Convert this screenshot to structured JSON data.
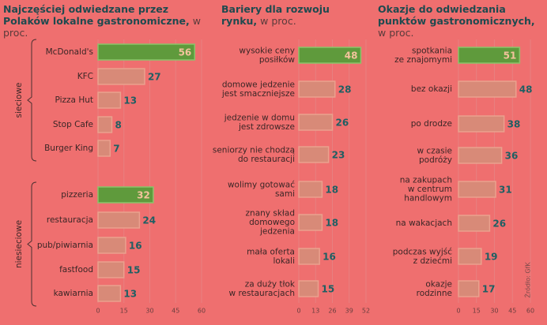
{
  "chart_data": [
    {
      "type": "hbar",
      "title": "Najczęściej odwiedzane przez Polaków lokalne gastronomiczne,",
      "unit": "w proc.",
      "categories": [
        [
          "McDonald's"
        ],
        [
          "KFC"
        ],
        [
          "Pizza Hut"
        ],
        [
          "Stop Cafe"
        ],
        [
          "Burger King"
        ],
        [
          "pizzeria"
        ],
        [
          "restauracja"
        ],
        [
          "pub/piwiarnia"
        ],
        [
          "fastfood"
        ],
        [
          "kawiarnia"
        ]
      ],
      "values": [
        56,
        27,
        13,
        8,
        7,
        32,
        24,
        16,
        15,
        13
      ],
      "groups": [
        {
          "name": "sieciowe",
          "from": 0,
          "to": 4
        },
        {
          "name": "niesieciowe",
          "from": 5,
          "to": 9
        }
      ],
      "color": "#d88a78",
      "highlight_color": "#5f9a3c",
      "highlight": [
        0,
        5
      ],
      "xlim": [
        0,
        60
      ],
      "xticks": [
        0,
        15,
        30,
        45,
        60
      ],
      "grid": true
    },
    {
      "type": "hbar",
      "title": "Bariery dla rozwoju rynku,",
      "unit": "w proc.",
      "categories": [
        [
          "wysokie ceny",
          "posiłków"
        ],
        [
          "domowe jedzenie",
          "jest smaczniejsze"
        ],
        [
          "jedzenie w domu",
          "jest zdrowsze"
        ],
        [
          "seniorzy nie chodzą",
          "do restauracji"
        ],
        [
          "wolimy gotować",
          "sami"
        ],
        [
          "znany skład",
          "domowego",
          "jedzenia"
        ],
        [
          "mała oferta",
          "lokali"
        ],
        [
          "za duży tłok",
          "w restauracjach"
        ]
      ],
      "values": [
        48,
        28,
        26,
        23,
        18,
        18,
        16,
        15
      ],
      "color": "#d88a78",
      "highlight_color": "#5f9a3c",
      "highlight": [
        0
      ],
      "xlim": [
        0,
        52
      ],
      "xticks": [
        0,
        13,
        26,
        39,
        52
      ],
      "grid": true
    },
    {
      "type": "hbar",
      "title": "Okazje do odwiedzania punktów gastronomicznych,",
      "unit": "w proc.",
      "categories": [
        [
          "spotkania",
          "ze znajomymi"
        ],
        [
          "bez okazji"
        ],
        [
          "po drodze"
        ],
        [
          "w czasie",
          "podróży"
        ],
        [
          "na zakupach",
          "w centrum",
          "handlowym"
        ],
        [
          "na wakacjach"
        ],
        [
          "podczas wyjść",
          "z dziećmi"
        ],
        [
          "okazje",
          "rodzinne"
        ]
      ],
      "values": [
        51,
        48,
        38,
        36,
        31,
        26,
        19,
        17
      ],
      "color": "#d88a78",
      "highlight_color": "#5f9a3c",
      "highlight": [
        0
      ],
      "xlim": [
        0,
        60
      ],
      "xticks": [
        0,
        15,
        30,
        45,
        60
      ],
      "grid": true,
      "source": "Źródło: GfK"
    }
  ]
}
